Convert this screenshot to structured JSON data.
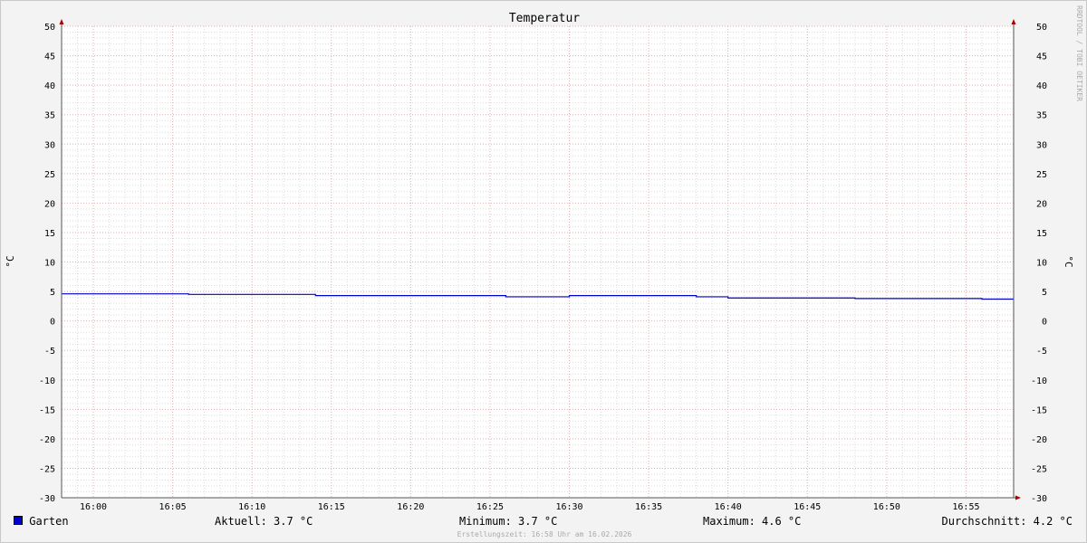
{
  "chart_data": {
    "type": "line",
    "title": "Temperatur",
    "ylabel": "°C",
    "ylim": [
      -30,
      50
    ],
    "yticks": [
      "50",
      "45",
      "40",
      "35",
      "30",
      "25",
      "20",
      "15",
      "10",
      "5",
      "0",
      "-5",
      "-10",
      "-15",
      "-20",
      "-25",
      "-30"
    ],
    "xlim": [
      "15:58",
      "16:58"
    ],
    "xticks": [
      "16:00",
      "16:05",
      "16:10",
      "16:15",
      "16:20",
      "16:25",
      "16:30",
      "16:35",
      "16:40",
      "16:45",
      "16:50",
      "16:55"
    ],
    "grid": true,
    "legend_position": "bottom",
    "series": [
      {
        "name": "Garten",
        "color": "#0000cc",
        "x": [
          "15:58",
          "16:06",
          "16:14",
          "16:26",
          "16:30",
          "16:38",
          "16:40",
          "16:48",
          "16:56"
        ],
        "y": [
          4.6,
          4.5,
          4.3,
          4.1,
          4.3,
          4.1,
          3.9,
          3.8,
          3.7
        ]
      }
    ]
  },
  "legend": {
    "series_name": "Garten",
    "current": "Aktuell: 3.7 °C",
    "minimum": "Minimum: 3.7 °C",
    "maximum": "Maximum: 4.6 °C",
    "average": "Durchschnitt: 4.2 °C"
  },
  "watermark": "RRDTOOL / TOBI OETIKER",
  "footer": "Erstellungszeit: 16:58 Uhr am 16.02.2026"
}
